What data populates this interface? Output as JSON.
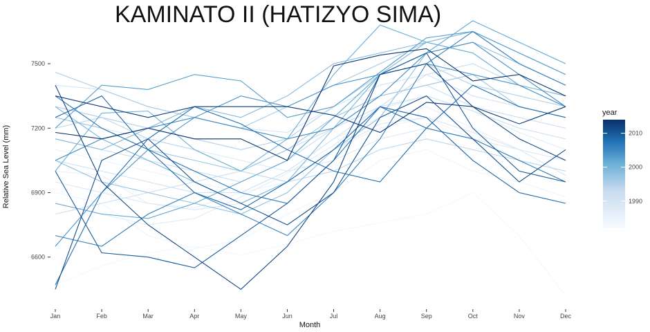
{
  "chart_data": {
    "type": "line",
    "title": "KAMINATO II (HATIZYO SIMA)",
    "xlabel": "Month",
    "ylabel": "Relative Sea Level (mm)",
    "categories": [
      "Jan",
      "Feb",
      "Mar",
      "Apr",
      "May",
      "Jun",
      "Jul",
      "Aug",
      "Sep",
      "Oct",
      "Nov",
      "Dec"
    ],
    "y_ticks": [
      6600,
      6900,
      7200,
      7500
    ],
    "ylim": [
      6380,
      7700
    ],
    "grid": false,
    "legend": {
      "title": "year",
      "placement": "right",
      "ticks": [
        1990,
        2000,
        2010
      ],
      "range": [
        1982,
        2014
      ],
      "color_low": "#f7fbff",
      "color_high": "#08306b"
    },
    "series": [
      {
        "year": 1983,
        "values": [
          6470,
          6560,
          6620,
          6650,
          6610,
          6660,
          6720,
          6760,
          6800,
          6900,
          6700,
          6420
        ]
      },
      {
        "year": 1984,
        "values": [
          6900,
          6850,
          6700,
          6640,
          6680,
          6800,
          6900,
          7050,
          7100,
          7000,
          6950,
          6880
        ]
      },
      {
        "year": 1985,
        "values": [
          7100,
          7050,
          7000,
          6950,
          6900,
          6950,
          7100,
          7200,
          7250,
          7150,
          7050,
          7000
        ]
      },
      {
        "year": 1986,
        "values": [
          7000,
          6980,
          6850,
          6830,
          6900,
          7000,
          7150,
          7250,
          7300,
          7200,
          7100,
          7050
        ]
      },
      {
        "year": 1987,
        "values": [
          6850,
          6800,
          6750,
          6780,
          6880,
          6990,
          7120,
          7290,
          7350,
          7280,
          7180,
          7100
        ]
      },
      {
        "year": 1988,
        "values": [
          7250,
          7200,
          7150,
          7100,
          7050,
          7000,
          7050,
          7150,
          7200,
          7150,
          7100,
          7050
        ]
      },
      {
        "year": 1989,
        "values": [
          6950,
          6900,
          6850,
          6820,
          6850,
          6950,
          7100,
          7220,
          7250,
          7180,
          7100,
          6980
        ]
      },
      {
        "year": 1990,
        "values": [
          7400,
          7380,
          7300,
          7250,
          7200,
          7180,
          7300,
          7400,
          7450,
          7350,
          7300,
          7250
        ]
      },
      {
        "year": 1991,
        "values": [
          7050,
          7000,
          6950,
          6900,
          6900,
          7000,
          7150,
          7300,
          7350,
          7280,
          7200,
          7150
        ]
      },
      {
        "year": 1992,
        "values": [
          6800,
          6850,
          6900,
          6950,
          7000,
          7100,
          7200,
          7350,
          7400,
          7300,
          7250,
          7200
        ]
      },
      {
        "year": 1993,
        "values": [
          7150,
          7100,
          7050,
          7000,
          6950,
          7050,
          7200,
          7300,
          7450,
          7500,
          7400,
          7300
        ]
      },
      {
        "year": 1994,
        "values": [
          7200,
          7250,
          7150,
          7100,
          7000,
          6950,
          7000,
          7100,
          7150,
          7100,
          7050,
          7000
        ]
      },
      {
        "year": 1995,
        "values": [
          7300,
          7250,
          7200,
          7150,
          7100,
          7150,
          7300,
          7450,
          7500,
          7400,
          7350,
          7300
        ]
      },
      {
        "year": 1996,
        "values": [
          7460,
          7380,
          7300,
          7250,
          7200,
          7300,
          7400,
          7500,
          7600,
          7650,
          7500,
          7400
        ]
      },
      {
        "year": 1997,
        "values": [
          7250,
          7200,
          7100,
          7050,
          7000,
          7100,
          7250,
          7350,
          7400,
          7450,
          7300,
          7250
        ]
      },
      {
        "year": 1998,
        "values": [
          7050,
          6950,
          6900,
          6850,
          6800,
          6900,
          7100,
          7250,
          7550,
          7600,
          7500,
          7400
        ]
      },
      {
        "year": 1999,
        "values": [
          7150,
          7100,
          7200,
          7300,
          7250,
          7350,
          7500,
          7550,
          7600,
          7650,
          7550,
          7450
        ]
      },
      {
        "year": 2000,
        "values": [
          7300,
          7150,
          7050,
          6950,
          6850,
          6950,
          7200,
          7450,
          7600,
          7550,
          7400,
          7350
        ]
      },
      {
        "year": 2001,
        "values": [
          7000,
          7270,
          7280,
          7100,
          7000,
          7150,
          7450,
          7680,
          7600,
          7550,
          7400,
          7300
        ]
      },
      {
        "year": 2002,
        "values": [
          6850,
          6800,
          6780,
          6850,
          6950,
          7050,
          7250,
          7450,
          7550,
          7700,
          7600,
          7500
        ]
      },
      {
        "year": 2003,
        "values": [
          7200,
          7400,
          7380,
          7450,
          7420,
          7250,
          7300,
          7460,
          7620,
          7650,
          7550,
          7450
        ]
      },
      {
        "year": 2004,
        "values": [
          6650,
          6900,
          7100,
          7250,
          7350,
          7300,
          7400,
          7450,
          7500,
          7450,
          7400,
          7300
        ]
      },
      {
        "year": 2005,
        "values": [
          7050,
          7150,
          7200,
          7250,
          7200,
          7150,
          7200,
          7350,
          7550,
          7600,
          7450,
          7300
        ]
      },
      {
        "year": 2006,
        "values": [
          6700,
          6650,
          6800,
          6900,
          6800,
          6700,
          6900,
          7150,
          7500,
          7650,
          7500,
          7400
        ]
      },
      {
        "year": 2007,
        "values": [
          7350,
          7200,
          7100,
          7000,
          6900,
          6850,
          7050,
          7300,
          7200,
          7150,
          7050,
          6950
        ]
      },
      {
        "year": 2008,
        "values": [
          6470,
          6900,
          7150,
          7300,
          7220,
          7100,
          7000,
          6950,
          7200,
          7400,
          7300,
          7250
        ]
      },
      {
        "year": 2009,
        "values": [
          7250,
          7350,
          7100,
          6900,
          6820,
          6950,
          7100,
          7300,
          7250,
          7050,
          6900,
          6850
        ]
      },
      {
        "year": 2010,
        "values": [
          7000,
          6620,
          6600,
          6550,
          6700,
          6850,
          7050,
          7450,
          7550,
          7200,
          7000,
          6950
        ]
      },
      {
        "year": 2011,
        "values": [
          6450,
          7050,
          7150,
          6950,
          6850,
          6750,
          6900,
          7250,
          7350,
          7150,
          6950,
          7100
        ]
      },
      {
        "year": 2012,
        "values": [
          7400,
          6950,
          6750,
          6600,
          6450,
          6650,
          6950,
          7450,
          7500,
          7300,
          7150,
          7050
        ]
      },
      {
        "year": 2013,
        "values": [
          7350,
          7300,
          7250,
          7300,
          7300,
          7300,
          7260,
          7180,
          7320,
          7300,
          7220,
          7300
        ]
      },
      {
        "year": 2014,
        "values": [
          7180,
          7150,
          7200,
          7150,
          7150,
          7050,
          7490,
          7540,
          7570,
          7420,
          7450,
          7350
        ]
      }
    ]
  }
}
